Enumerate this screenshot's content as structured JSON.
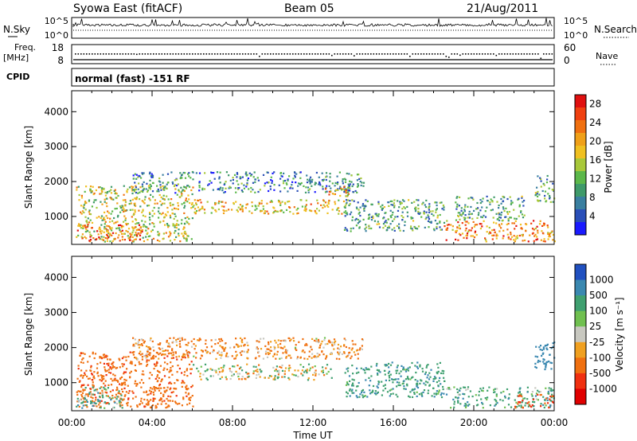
{
  "header": {
    "station": "Syowa East (fitACF)",
    "beam": "Beam 05",
    "date": "21/Aug/2011"
  },
  "panels": {
    "nsky_label": "N.Sky",
    "nsky_ticks": [
      "10^5",
      "10^0"
    ],
    "nsearch_label": "N.Search",
    "nsearch_ticks": [
      "10^5",
      "10^0"
    ],
    "freq_label": "Freq.",
    "freq_unit": "[MHz]",
    "freq_ticks": [
      "18",
      "8"
    ],
    "nave_label": "Nave",
    "nave_ticks": [
      "60",
      "0"
    ],
    "cpid_label": "CPID",
    "mode": "normal (fast) -151 RF"
  },
  "chart_data": [
    {
      "type": "heatmap",
      "name": "power",
      "xlabel": "Time UT",
      "ylabel": "Slant Range [km]",
      "xlim": [
        0,
        24
      ],
      "ylim": [
        200,
        4600
      ],
      "yticks": [
        "1000",
        "2000",
        "3000",
        "4000"
      ],
      "xticks": [
        "00:00",
        "04:00",
        "08:00",
        "12:00",
        "16:00",
        "20:00",
        "00:00"
      ],
      "colorbar": {
        "label": "Power [dB]",
        "ticks": [
          "4",
          "8",
          "12",
          "16",
          "20",
          "24",
          "28"
        ],
        "colors": [
          "#1a1aff",
          "#2a4fb8",
          "#3a7fa0",
          "#3f9a6a",
          "#5cb84a",
          "#a8c83a",
          "#f0c020",
          "#f0a018",
          "#f07010",
          "#f04010",
          "#e01010"
        ]
      },
      "regions": [
        {
          "t0": 0.2,
          "t1": 6.0,
          "r0": 300,
          "r1": 1900,
          "level": 16
        },
        {
          "t0": 0.2,
          "t1": 3.5,
          "r0": 300,
          "r1": 800,
          "level": 24
        },
        {
          "t0": 6.0,
          "t1": 13.5,
          "r0": 1100,
          "r1": 1500,
          "level": 18
        },
        {
          "t0": 3.0,
          "t1": 14.5,
          "r0": 1700,
          "r1": 2300,
          "level": 8
        },
        {
          "t0": 12.5,
          "t1": 14.0,
          "r0": 1600,
          "r1": 1900,
          "level": 20
        },
        {
          "t0": 13.5,
          "t1": 18.5,
          "r0": 600,
          "r1": 1500,
          "level": 10
        },
        {
          "t0": 18.5,
          "t1": 24.0,
          "r0": 300,
          "r1": 900,
          "level": 22
        },
        {
          "t0": 19.0,
          "t1": 22.5,
          "r0": 900,
          "r1": 1600,
          "level": 10
        },
        {
          "t0": 23.0,
          "t1": 24.0,
          "r0": 1400,
          "r1": 2200,
          "level": 10
        }
      ]
    },
    {
      "type": "heatmap",
      "name": "velocity",
      "xlabel": "Time UT",
      "ylabel": "Slant Range [km]",
      "xlim": [
        0,
        24
      ],
      "ylim": [
        200,
        4600
      ],
      "yticks": [
        "1000",
        "2000",
        "3000",
        "4000"
      ],
      "xticks": [
        "00:00",
        "04:00",
        "08:00",
        "12:00",
        "16:00",
        "20:00",
        "00:00"
      ],
      "colorbar": {
        "label": "Velocity [m s⁻¹]",
        "ticks": [
          "1000",
          "500",
          "100",
          "25",
          "-25",
          "-100",
          "-500",
          "-1000"
        ],
        "colors": [
          "#2050c0",
          "#3a88b0",
          "#3fa070",
          "#70c050",
          "#c8c8c0",
          "#f0a020",
          "#f07010",
          "#f03010",
          "#e00000"
        ]
      },
      "regions": [
        {
          "t0": 0.2,
          "t1": 6.0,
          "r0": 300,
          "r1": 1900,
          "level": -300
        },
        {
          "t0": 0.2,
          "t1": 2.5,
          "r0": 300,
          "r1": 900,
          "level": 150
        },
        {
          "t0": 6.0,
          "t1": 13.0,
          "r0": 1100,
          "r1": 1550,
          "level": 0
        },
        {
          "t0": 3.0,
          "t1": 14.5,
          "r0": 1700,
          "r1": 2300,
          "level": -120
        },
        {
          "t0": 13.5,
          "t1": 18.5,
          "r0": 600,
          "r1": 1600,
          "level": 200
        },
        {
          "t0": 18.5,
          "t1": 24.0,
          "r0": 300,
          "r1": 900,
          "level": 150
        },
        {
          "t0": 22.0,
          "t1": 24.0,
          "r0": 300,
          "r1": 700,
          "level": -400
        },
        {
          "t0": 23.0,
          "t1": 24.0,
          "r0": 1400,
          "r1": 2200,
          "level": 400
        }
      ]
    }
  ]
}
